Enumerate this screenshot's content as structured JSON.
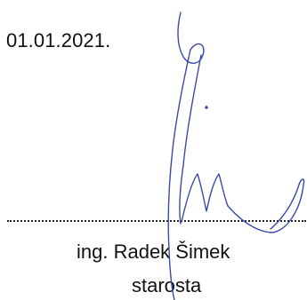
{
  "document": {
    "date": "01.01.2021.",
    "signer_name": "ing. Radek Šimek",
    "signer_role": "starosta",
    "signature_ink_color": "#3b4aa8"
  }
}
